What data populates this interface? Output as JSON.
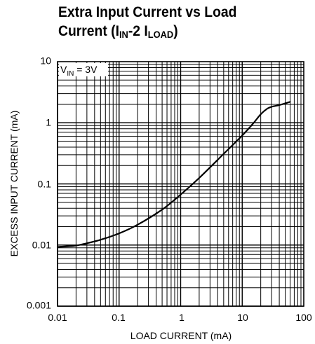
{
  "chart_data": {
    "type": "line",
    "title": {
      "line1": "Extra Input Current vs Load",
      "line2_prefix": "Current (I",
      "sub1": "IN",
      "middle": "-2 I",
      "sub2": "LOAD",
      "suffix": ")"
    },
    "xlabel": "LOAD CURRENT (mA)",
    "ylabel": "EXCESS INPUT CURRENT (mA)",
    "x_scale": "log",
    "y_scale": "log",
    "xlim": [
      0.01,
      100
    ],
    "ylim": [
      0.001,
      10
    ],
    "x_ticks": [
      "0.01",
      "0.1",
      "1",
      "10",
      "100"
    ],
    "y_ticks": [
      "10",
      "1",
      "0.1",
      "0.01",
      "0.001"
    ],
    "grid": true,
    "annotation": {
      "prefix": "V",
      "sub": "IN",
      "suffix": " = 3V"
    },
    "series": [
      {
        "color": "#000000",
        "x": [
          0.01,
          0.02,
          0.03,
          0.05,
          0.1,
          0.2,
          0.5,
          1,
          2,
          5,
          10,
          15,
          20,
          25,
          30,
          40,
          60
        ],
        "y": [
          0.0093,
          0.0098,
          0.0107,
          0.0122,
          0.0155,
          0.0215,
          0.038,
          0.067,
          0.125,
          0.31,
          0.62,
          0.97,
          1.38,
          1.68,
          1.83,
          1.95,
          2.2
        ]
      }
    ]
  }
}
